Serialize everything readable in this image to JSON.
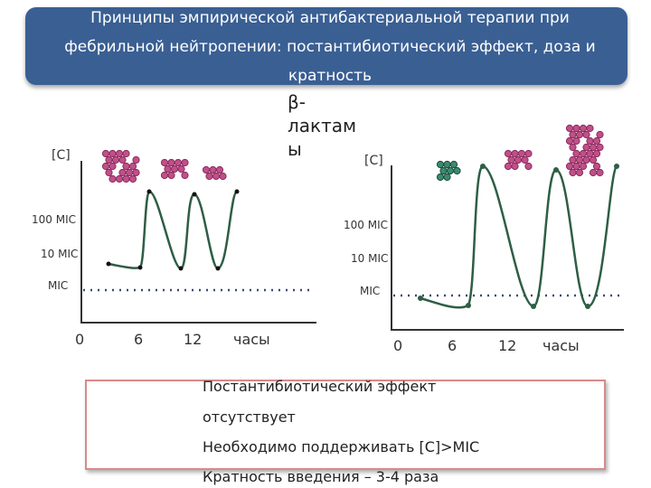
{
  "header": {
    "title": "Принципы эмпирической антибактериальной терапии при фебрильной нейтропении:  постантибиотический эффект, доза и кратность"
  },
  "subtitle": "β-лактамы",
  "left_chart": {
    "y_axis_label": "[C]",
    "y_labels": [
      "100 MIC",
      "10 MIC",
      "MIC"
    ],
    "x_labels": [
      "0",
      "6",
      "12"
    ],
    "x_axis_label": "часы"
  },
  "right_chart": {
    "y_axis_label": "[C]",
    "y_labels": [
      "100 MIC",
      "10 MIC",
      "MIC"
    ],
    "x_labels": [
      "0",
      "6",
      "12"
    ],
    "x_axis_label": "часы"
  },
  "note": {
    "lines": [
      "Постантибиотический эффект",
      "отсутствует",
      "Необходимо поддерживать [C]>MIC",
      "Кратность введения – 3-4 раза"
    ]
  }
}
